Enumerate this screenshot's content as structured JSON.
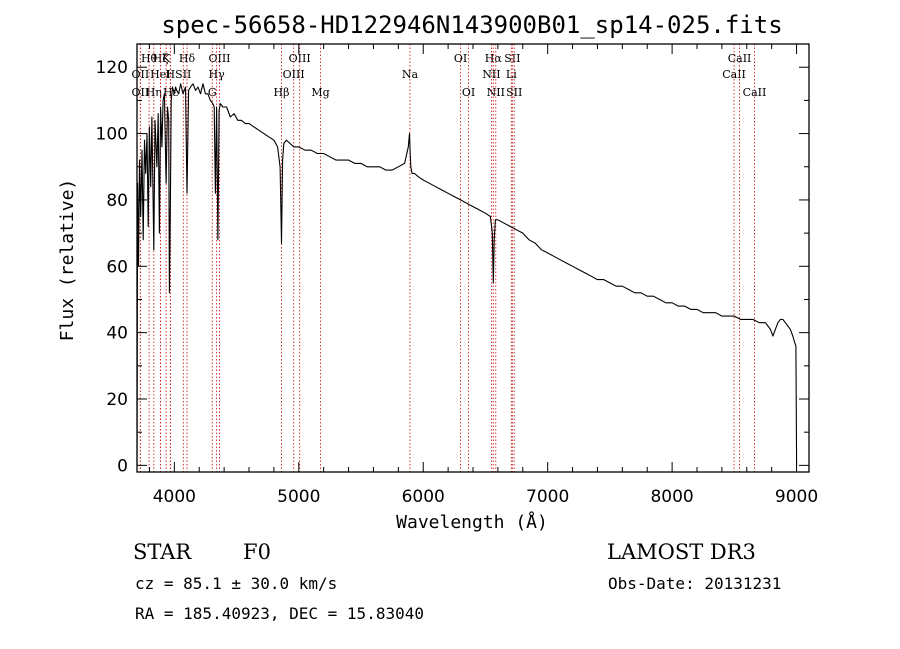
{
  "chart_data": {
    "type": "line",
    "title": "spec-56658-HD122946N143900B01_sp14-025.fits",
    "xlabel": "Wavelength (Å)",
    "ylabel": "Flux (relative)",
    "xlim": [
      3700,
      9100
    ],
    "ylim": [
      -2,
      127
    ],
    "xticks": [
      4000,
      5000,
      6000,
      7000,
      8000,
      9000
    ],
    "yticks": [
      0,
      20,
      40,
      60,
      80,
      100,
      120
    ],
    "xtick_labels": [
      "4000",
      "5000",
      "6000",
      "7000",
      "8000",
      "9000"
    ],
    "ytick_labels": [
      "0",
      "20",
      "40",
      "60",
      "80",
      "100",
      "120"
    ],
    "grid": false,
    "series": [
      {
        "name": "spectrum",
        "x": [
          3700,
          3705,
          3712,
          3720,
          3730,
          3740,
          3750,
          3760,
          3770,
          3780,
          3790,
          3800,
          3810,
          3820,
          3835,
          3845,
          3860,
          3870,
          3880,
          3890,
          3900,
          3910,
          3920,
          3934,
          3945,
          3955,
          3960,
          3968,
          3975,
          3985,
          4000,
          4010,
          4020,
          4035,
          4050,
          4070,
          4090,
          4102,
          4115,
          4130,
          4150,
          4170,
          4190,
          4210,
          4230,
          4250,
          4270,
          4290,
          4310,
          4320,
          4330,
          4340,
          4350,
          4360,
          4370,
          4390,
          4420,
          4450,
          4480,
          4510,
          4540,
          4570,
          4600,
          4640,
          4680,
          4720,
          4760,
          4800,
          4830,
          4850,
          4861,
          4870,
          4880,
          4900,
          4930,
          4960,
          5000,
          5050,
          5100,
          5150,
          5200,
          5250,
          5300,
          5350,
          5400,
          5450,
          5500,
          5550,
          5600,
          5650,
          5700,
          5750,
          5800,
          5850,
          5880,
          5890,
          5895,
          5900,
          5910,
          5930,
          5960,
          6000,
          6050,
          6100,
          6150,
          6200,
          6250,
          6300,
          6350,
          6400,
          6450,
          6500,
          6540,
          6555,
          6563,
          6570,
          6580,
          6600,
          6650,
          6700,
          6750,
          6800,
          6850,
          6900,
          6950,
          7000,
          7050,
          7100,
          7150,
          7200,
          7250,
          7300,
          7350,
          7400,
          7450,
          7500,
          7550,
          7600,
          7650,
          7700,
          7750,
          7800,
          7850,
          7900,
          7950,
          8000,
          8050,
          8100,
          8150,
          8200,
          8250,
          8300,
          8350,
          8400,
          8450,
          8500,
          8550,
          8600,
          8650,
          8700,
          8750,
          8770,
          8790,
          8810,
          8830,
          8850,
          8870,
          8890,
          8910,
          8930,
          8950,
          8970,
          8985,
          8995,
          9000
        ],
        "values": [
          0,
          85,
          60,
          92,
          75,
          95,
          68,
          98,
          88,
          100,
          72,
          102,
          84,
          105,
          65,
          104,
          90,
          106,
          70,
          108,
          96,
          110,
          112,
          85,
          108,
          104,
          52,
          80,
          110,
          114,
          112,
          114,
          113,
          112,
          115,
          112,
          114,
          82,
          113,
          114,
          115,
          113,
          114,
          112,
          115,
          112,
          112,
          110,
          109,
          108,
          82,
          108,
          68,
          107,
          109,
          108,
          108,
          105,
          106,
          104,
          104,
          103,
          103,
          102,
          101,
          100,
          99,
          98,
          96,
          90,
          67,
          92,
          97,
          98,
          97,
          96,
          96,
          95,
          95,
          94,
          94,
          93,
          92,
          92,
          92,
          91,
          91,
          90,
          90,
          90,
          89,
          89,
          90,
          91,
          96,
          100,
          94,
          90,
          88,
          88,
          87,
          86,
          85,
          84,
          83,
          82,
          81,
          80,
          79,
          78,
          77,
          76,
          75,
          70,
          55,
          68,
          74,
          74,
          73,
          72,
          71,
          70,
          68,
          67,
          65,
          64,
          63,
          62,
          61,
          60,
          59,
          58,
          57,
          56,
          56,
          55,
          54,
          54,
          53,
          52,
          52,
          51,
          51,
          50,
          49,
          49,
          48,
          48,
          47,
          47,
          46,
          46,
          46,
          45,
          45,
          45,
          44,
          44,
          44,
          43,
          43,
          42,
          41,
          39,
          41,
          43,
          44,
          44,
          43,
          42,
          41,
          39,
          37,
          36,
          0
        ]
      }
    ],
    "lines": [
      {
        "label": "Hθ",
        "x": 3797,
        "row": 1
      },
      {
        "label": "OII",
        "x": 3727,
        "row": 2
      },
      {
        "label": "OII",
        "x": 3727,
        "row": 3
      },
      {
        "label": "Hη",
        "x": 3835,
        "row": 3
      },
      {
        "label": "Hζ",
        "x": 3889,
        "row": 1
      },
      {
        "label": "HeI",
        "x": 3888,
        "row": 2
      },
      {
        "label": "Hε",
        "x": 3970,
        "row": 3
      },
      {
        "label": "K",
        "x": 3934,
        "row": 1
      },
      {
        "label": "H",
        "x": 3968,
        "row": 2
      },
      {
        "label": "SII",
        "x": 4072,
        "row": 2
      },
      {
        "label": "Hδ",
        "x": 4102,
        "row": 1
      },
      {
        "label": "OIII",
        "x": 4363,
        "row": 1
      },
      {
        "label": "Hγ",
        "x": 4340,
        "row": 2
      },
      {
        "label": "G",
        "x": 4305,
        "row": 3
      },
      {
        "label": "Hβ",
        "x": 4861,
        "row": 3
      },
      {
        "label": "OIII",
        "x": 5007,
        "row": 1
      },
      {
        "label": "OIII",
        "x": 4959,
        "row": 2
      },
      {
        "label": "Mg",
        "x": 5175,
        "row": 3
      },
      {
        "label": "Na",
        "x": 5893,
        "row": 2
      },
      {
        "label": "OI",
        "x": 6300,
        "row": 1
      },
      {
        "label": "OI",
        "x": 6364,
        "row": 3
      },
      {
        "label": "Hα",
        "x": 6563,
        "row": 1
      },
      {
        "label": "NII",
        "x": 6548,
        "row": 2
      },
      {
        "label": "NII",
        "x": 6583,
        "row": 3
      },
      {
        "label": "SII",
        "x": 6716,
        "row": 1
      },
      {
        "label": "Li",
        "x": 6708,
        "row": 2
      },
      {
        "label": "SII",
        "x": 6731,
        "row": 3
      },
      {
        "label": "CaII",
        "x": 8498,
        "row": 2
      },
      {
        "label": "CaII",
        "x": 8542,
        "row": 1
      },
      {
        "label": "CaII",
        "x": 8662,
        "row": 3
      }
    ]
  },
  "info": {
    "object_class": "STAR",
    "subclass": "F0",
    "survey": "LAMOST DR3",
    "redshift": "cz = 85.1 ± 30.0 km/s",
    "obs_date": "Obs-Date: 20131231",
    "coords": "RA = 185.40923, DEC =  15.83040"
  },
  "colors": {
    "spectrum": "#000000",
    "line_marker": "#cc2222",
    "axis": "#000000",
    "background": "#ffffff"
  }
}
